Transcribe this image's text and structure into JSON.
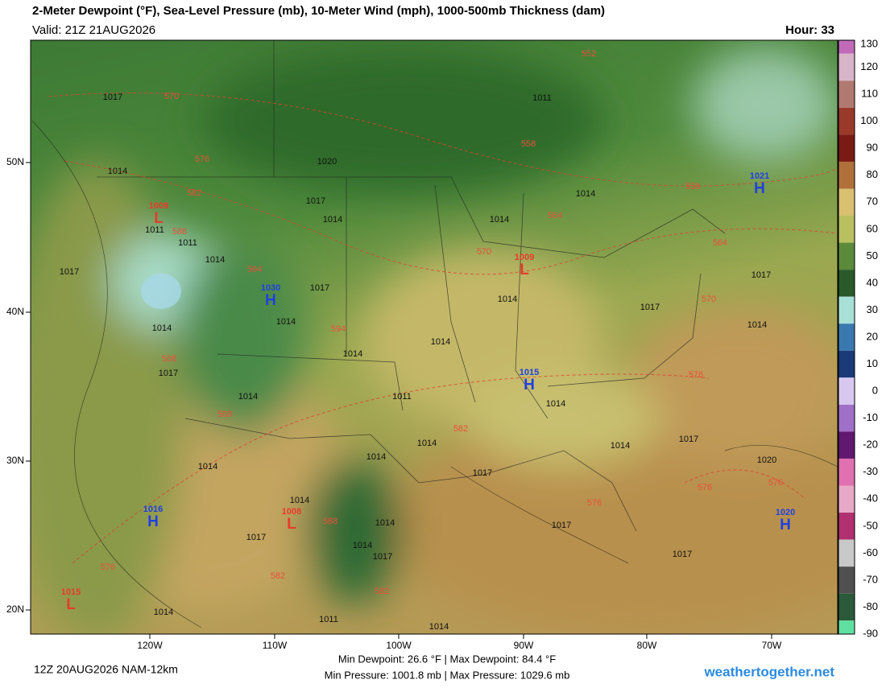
{
  "header": {
    "title": "2-Meter Dewpoint (°F), Sea-Level Pressure (mb), 10-Meter Wind (mph), 1000-500mb Thickness (dam)",
    "valid": "Valid: 21Z 21AUG2026",
    "hour": "Hour: 33"
  },
  "map": {
    "lon_ticks": [
      "120W",
      "110W",
      "100W",
      "90W",
      "80W",
      "70W"
    ],
    "lat_ticks": [
      "50N",
      "40N",
      "30N",
      "20N"
    ],
    "isobar_labels": [
      1017,
      1011,
      1020,
      1014,
      1017,
      1014,
      1014,
      1014,
      1017,
      1011,
      1011,
      1014,
      1017,
      1014,
      1017,
      1017,
      1014,
      1014,
      1014,
      1014,
      1014,
      1017,
      1014,
      1011,
      1014,
      1014,
      1017,
      1014,
      1017,
      1020,
      1014,
      1017,
      1017,
      1014,
      1014,
      1014,
      1014,
      1017,
      1014,
      1011,
      1014,
      1017
    ],
    "thickness_labels": [
      552,
      570,
      576,
      558,
      558,
      582,
      564,
      588,
      564,
      570,
      594,
      570,
      594,
      588,
      576,
      588,
      582,
      576,
      576,
      576,
      588,
      576,
      582,
      582
    ],
    "highs": [
      {
        "letter": "H",
        "value": 1030
      },
      {
        "letter": "H",
        "value": 1015
      },
      {
        "letter": "H",
        "value": 1021
      },
      {
        "letter": "H",
        "value": 1016
      },
      {
        "letter": "H",
        "value": 1020
      }
    ],
    "lows": [
      {
        "letter": "L",
        "value": 1009
      },
      {
        "letter": "L",
        "value": 1009
      },
      {
        "letter": "L",
        "value": 1008
      },
      {
        "letter": "L",
        "value": 1015
      }
    ]
  },
  "colorbar": {
    "ticks": [
      130,
      120,
      110,
      100,
      90,
      80,
      70,
      60,
      50,
      40,
      30,
      20,
      10,
      0,
      -10,
      -20,
      -30,
      -40,
      -50,
      -60,
      -70,
      -80,
      -90
    ],
    "colors": [
      "#c06ab8",
      "#d8b4c8",
      "#b07a70",
      "#9a3a2a",
      "#7a1a14",
      "#b0703a",
      "#d8c070",
      "#b8c060",
      "#5a8a3a",
      "#2a5a2a",
      "#a8e0d8",
      "#3a78b0",
      "#1a3a78",
      "#d8c8f0",
      "#a070c8",
      "#601870",
      "#e070b0",
      "#e8a8c8",
      "#b03070",
      "#c8c8c8",
      "#505050",
      "#2a5a3a",
      "#60e0a0"
    ]
  },
  "footer": {
    "run": "12Z 20AUG2026 NAM-12km",
    "dewpoint": "Min Dewpoint:  26.6 °F | Max Dewpoint:  84.4 °F",
    "pressure": "Min Pressure: 1001.8 mb | Max Pressure: 1029.6 mb",
    "site": "weathertogether.net"
  }
}
